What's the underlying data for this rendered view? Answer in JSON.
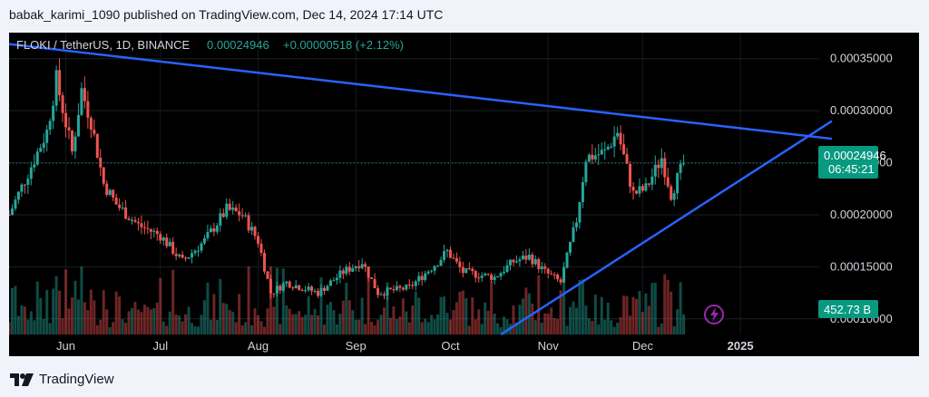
{
  "header": {
    "publisher": "babak_karimi_1090 published on TradingView.com, Dec 14, 2024 17:14 UTC"
  },
  "symbol_bar": {
    "pair": "FLOKI / TetherUS, 1D, BINANCE",
    "price": "0.00024946",
    "change": "+0.00000518 (+2.12%)"
  },
  "price_label": {
    "value": "0.00024946",
    "countdown": "06:45:21"
  },
  "volume_label": "452.73 B",
  "footer": {
    "brand": "TradingView"
  },
  "colors": {
    "up": "#26a69a",
    "down": "#ef5350",
    "trendline": "#2962ff",
    "background": "#000000",
    "label_bg": "#089981",
    "axis_text": "#d1d4dc",
    "badge": "#9c27b0"
  },
  "chart_data": {
    "type": "candlestick",
    "title": "FLOKI / TetherUS, 1D, BINANCE",
    "x_ticks": [
      "Jun",
      "Jul",
      "Aug",
      "Sep",
      "Oct",
      "Nov",
      "Dec",
      "2025"
    ],
    "y_ticks": [
      "0.00035000",
      "0.00030000",
      "0.00025000",
      "0.00020000",
      "0.00015000",
      "0.00010000"
    ],
    "ylim": [
      8.5e-05,
      0.000375
    ],
    "date_range": [
      "2024-05-14",
      "2025-01-26"
    ],
    "last_price": 0.00024946,
    "close_series": [
      {
        "date": "2024-05-14",
        "close": 0.0002
      },
      {
        "date": "2024-05-20",
        "close": 0.00024
      },
      {
        "date": "2024-05-26",
        "close": 0.00028
      },
      {
        "date": "2024-05-29",
        "close": 0.00033
      },
      {
        "date": "2024-06-03",
        "close": 0.00026
      },
      {
        "date": "2024-06-06",
        "close": 0.00032
      },
      {
        "date": "2024-06-09",
        "close": 0.00029
      },
      {
        "date": "2024-06-13",
        "close": 0.00023
      },
      {
        "date": "2024-06-17",
        "close": 0.00021
      },
      {
        "date": "2024-06-24",
        "close": 0.00019
      },
      {
        "date": "2024-07-01",
        "close": 0.00018
      },
      {
        "date": "2024-07-08",
        "close": 0.000155
      },
      {
        "date": "2024-07-15",
        "close": 0.000175
      },
      {
        "date": "2024-07-22",
        "close": 0.000205
      },
      {
        "date": "2024-07-27",
        "close": 0.0002
      },
      {
        "date": "2024-08-01",
        "close": 0.000175
      },
      {
        "date": "2024-08-05",
        "close": 0.000125
      },
      {
        "date": "2024-08-10",
        "close": 0.000135
      },
      {
        "date": "2024-08-20",
        "close": 0.000125
      },
      {
        "date": "2024-08-28",
        "close": 0.000145
      },
      {
        "date": "2024-09-03",
        "close": 0.000155
      },
      {
        "date": "2024-09-08",
        "close": 0.000125
      },
      {
        "date": "2024-09-18",
        "close": 0.00013
      },
      {
        "date": "2024-09-27",
        "close": 0.000155
      },
      {
        "date": "2024-09-30",
        "close": 0.000165
      },
      {
        "date": "2024-10-05",
        "close": 0.000145
      },
      {
        "date": "2024-10-15",
        "close": 0.00014
      },
      {
        "date": "2024-10-21",
        "close": 0.000155
      },
      {
        "date": "2024-10-26",
        "close": 0.00016
      },
      {
        "date": "2024-10-31",
        "close": 0.000145
      },
      {
        "date": "2024-11-05",
        "close": 0.000135
      },
      {
        "date": "2024-11-10",
        "close": 0.000195
      },
      {
        "date": "2024-11-13",
        "close": 0.000255
      },
      {
        "date": "2024-11-19",
        "close": 0.00026
      },
      {
        "date": "2024-11-23",
        "close": 0.00028
      },
      {
        "date": "2024-11-28",
        "close": 0.00022
      },
      {
        "date": "2024-12-02",
        "close": 0.000225
      },
      {
        "date": "2024-12-07",
        "close": 0.000255
      },
      {
        "date": "2024-12-10",
        "close": 0.00022
      },
      {
        "date": "2024-12-14",
        "close": 0.00024946
      }
    ],
    "trendlines": [
      {
        "name": "resistance",
        "points": [
          [
            "2024-05-14",
            0.000364
          ],
          [
            "2025-01-30",
            0.000273
          ]
        ]
      },
      {
        "name": "support",
        "points": [
          [
            "2024-10-17",
            8.5e-05
          ],
          [
            "2025-01-30",
            0.00029
          ]
        ]
      }
    ]
  }
}
